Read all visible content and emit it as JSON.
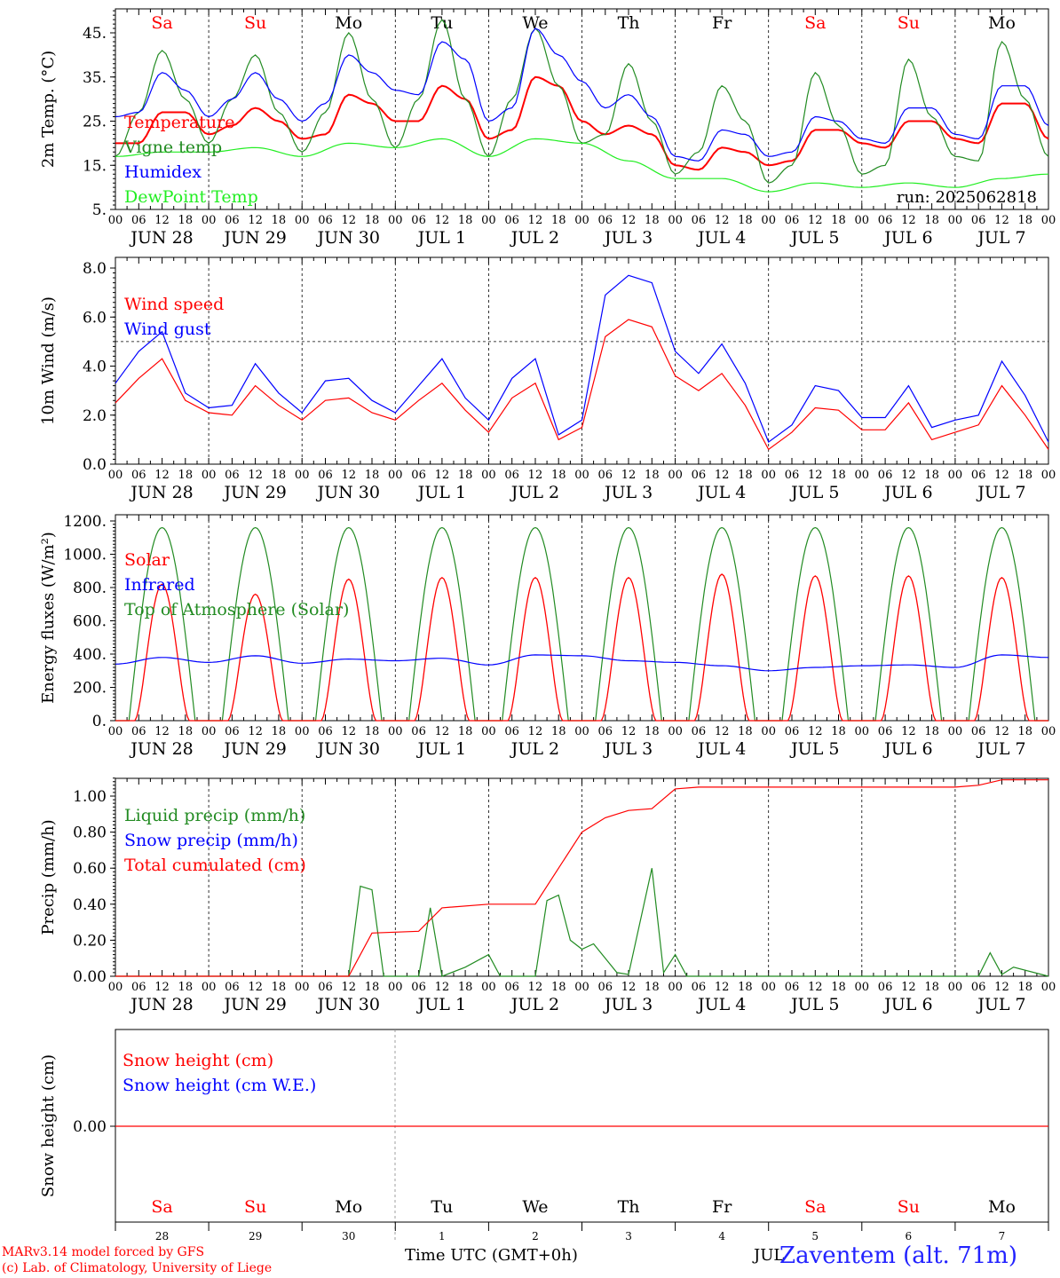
{
  "days": [
    "Sa",
    "Su",
    "Mo",
    "Tu",
    "We",
    "Th",
    "Fr",
    "Sa",
    "Su",
    "Mo"
  ],
  "weekend_flags": [
    true,
    true,
    false,
    false,
    false,
    false,
    false,
    true,
    true,
    false
  ],
  "date_labels": [
    "JUN 28",
    "JUN 29",
    "JUN 30",
    "JUL  1",
    "JUL  2",
    "JUL  3",
    "JUL  4",
    "JUL  5",
    "JUL  6",
    "JUL  7"
  ],
  "hour_ticks": [
    "00",
    "06",
    "12",
    "18"
  ],
  "hour_end": "00",
  "bottom_day_numbers": [
    "28",
    "29",
    "30",
    "1",
    "2",
    "3",
    "4",
    "5",
    "6",
    "7"
  ],
  "run_label": "run: 2025062818",
  "footer": {
    "model_line": "MARv3.14 model forced by GFS",
    "credit_line": "(c) Lab. of Climatology, University of Liege",
    "time_axis": "Time UTC (GMT+0h)",
    "month_fragment": "JUL",
    "station": "Zaventem (alt. 71m)"
  },
  "colors": {
    "red": "#ff0000",
    "green": "#228b22",
    "blue": "#0000ff",
    "light_green": "#22ee22",
    "weekend": "#ff0000",
    "station": "#2222ff"
  },
  "chart_data": [
    {
      "type": "line",
      "ylabel": "2m Temp. (°C)",
      "yticks": [
        "45.",
        "35.",
        "25.",
        "15.",
        "5."
      ],
      "ylim": [
        5,
        50
      ],
      "x_unit": "hours since JUN 28 00 UTC",
      "series": [
        {
          "name": "Temperature",
          "color": "red",
          "x": [
            0,
            6,
            12,
            18,
            24,
            30,
            36,
            42,
            48,
            54,
            60,
            66,
            72,
            78,
            84,
            90,
            96,
            102,
            108,
            114,
            120,
            126,
            132,
            138,
            144,
            150,
            156,
            162,
            168,
            174,
            180,
            186,
            192,
            198,
            204,
            210,
            216,
            222,
            228,
            234,
            240
          ],
          "values": [
            20,
            20,
            27,
            27,
            22,
            24,
            28,
            25,
            21,
            22,
            31,
            29,
            25,
            25,
            33,
            30,
            21,
            23,
            35,
            33,
            25,
            22,
            24,
            22,
            15,
            14,
            19,
            18,
            15,
            16,
            23,
            23,
            20,
            19,
            25,
            25,
            21,
            20,
            29,
            29,
            21
          ]
        },
        {
          "name": "Vigne temp",
          "color": "green",
          "x": [
            0,
            6,
            12,
            18,
            24,
            30,
            36,
            42,
            48,
            54,
            60,
            66,
            72,
            78,
            84,
            90,
            96,
            102,
            108,
            114,
            120,
            126,
            132,
            138,
            144,
            150,
            156,
            162,
            168,
            174,
            180,
            186,
            192,
            198,
            204,
            210,
            216,
            222,
            228,
            234,
            240
          ],
          "values": [
            17,
            27,
            41,
            30,
            20,
            30,
            40,
            27,
            18,
            27,
            45,
            30,
            19,
            30,
            48,
            30,
            17,
            30,
            46,
            33,
            20,
            22,
            38,
            25,
            13,
            18,
            33,
            25,
            11,
            15,
            36,
            24,
            13,
            15,
            39,
            26,
            17,
            16,
            43,
            30,
            17
          ]
        },
        {
          "name": "Humidex",
          "color": "blue",
          "x": [
            0,
            6,
            12,
            18,
            24,
            30,
            36,
            42,
            48,
            54,
            60,
            66,
            72,
            78,
            84,
            90,
            96,
            102,
            108,
            114,
            120,
            126,
            132,
            138,
            144,
            150,
            156,
            162,
            168,
            174,
            180,
            186,
            192,
            198,
            204,
            210,
            216,
            222,
            228,
            234,
            240
          ],
          "values": [
            26,
            27,
            36,
            32,
            26,
            30,
            36,
            30,
            25,
            29,
            40,
            36,
            32,
            31,
            43,
            39,
            25,
            28,
            46,
            40,
            34,
            28,
            31,
            26,
            17,
            16,
            23,
            22,
            17,
            18,
            26,
            25,
            21,
            20,
            28,
            28,
            22,
            21,
            33,
            33,
            24
          ]
        },
        {
          "name": "DewPoint Temp",
          "color": "light_green",
          "x": [
            0,
            12,
            24,
            36,
            48,
            60,
            72,
            84,
            96,
            108,
            120,
            132,
            144,
            156,
            168,
            180,
            192,
            204,
            216,
            228,
            240
          ],
          "values": [
            17,
            18,
            18,
            19,
            17,
            20,
            19,
            21,
            17,
            21,
            20,
            16,
            12,
            12,
            9,
            11,
            10,
            11,
            10,
            12,
            13
          ]
        }
      ]
    },
    {
      "type": "line",
      "ylabel": "10m Wind (m/s)",
      "yticks": [
        "8.0",
        "6.0",
        "4.0",
        "2.0",
        "0.0"
      ],
      "ylim": [
        0,
        8
      ],
      "reference_line": 5,
      "x_unit": "hours since JUN 28 00 UTC",
      "series": [
        {
          "name": "Wind speed",
          "color": "red",
          "x": [
            0,
            6,
            12,
            18,
            24,
            30,
            36,
            42,
            48,
            54,
            60,
            66,
            72,
            78,
            84,
            90,
            96,
            102,
            108,
            114,
            120,
            126,
            132,
            138,
            144,
            150,
            156,
            162,
            168,
            174,
            180,
            186,
            192,
            198,
            204,
            210,
            216,
            222,
            228,
            234,
            240
          ],
          "values": [
            2.5,
            3.5,
            4.3,
            2.6,
            2.1,
            2.0,
            3.2,
            2.4,
            1.8,
            2.6,
            2.7,
            2.1,
            1.8,
            2.6,
            3.3,
            2.2,
            1.3,
            2.7,
            3.3,
            1.0,
            1.5,
            5.2,
            5.9,
            5.6,
            3.6,
            3.0,
            3.7,
            2.4,
            0.6,
            1.3,
            2.3,
            2.2,
            1.4,
            1.4,
            2.5,
            1.0,
            1.3,
            1.6,
            3.2,
            2.0,
            0.6
          ]
        },
        {
          "name": "Wind gust",
          "color": "blue",
          "x": [
            0,
            6,
            12,
            18,
            24,
            30,
            36,
            42,
            48,
            54,
            60,
            66,
            72,
            78,
            84,
            90,
            96,
            102,
            108,
            114,
            120,
            126,
            132,
            138,
            144,
            150,
            156,
            162,
            168,
            174,
            180,
            186,
            192,
            198,
            204,
            210,
            216,
            222,
            228,
            234,
            240
          ],
          "values": [
            3.3,
            4.6,
            5.4,
            2.9,
            2.3,
            2.4,
            4.1,
            2.9,
            2.1,
            3.4,
            3.5,
            2.6,
            2.1,
            3.2,
            4.3,
            2.7,
            1.8,
            3.5,
            4.3,
            1.2,
            1.8,
            6.9,
            7.7,
            7.4,
            4.6,
            3.7,
            4.9,
            3.3,
            0.9,
            1.6,
            3.2,
            3.0,
            1.9,
            1.9,
            3.2,
            1.5,
            1.8,
            2.0,
            4.2,
            2.8,
            0.9
          ]
        }
      ]
    },
    {
      "type": "line",
      "ylabel": "Energy fluxes (W/m²)",
      "yticks": [
        "1200.",
        "1000.",
        "800.",
        "600.",
        "400.",
        "200.",
        "0."
      ],
      "ylim": [
        0,
        1200
      ],
      "x_unit": "hours since JUN 28 00 UTC",
      "solar_peaks": [
        820,
        760,
        850,
        860,
        860,
        860,
        880,
        870,
        870,
        860
      ],
      "toa_peak": 1160,
      "series": [
        {
          "name": "Solar",
          "color": "red"
        },
        {
          "name": "Infrared",
          "color": "blue",
          "x": [
            0,
            12,
            24,
            36,
            48,
            60,
            72,
            84,
            96,
            108,
            120,
            132,
            144,
            156,
            168,
            180,
            192,
            204,
            216,
            228,
            240
          ],
          "values": [
            340,
            380,
            350,
            390,
            345,
            370,
            360,
            375,
            335,
            395,
            390,
            360,
            350,
            330,
            300,
            320,
            330,
            335,
            320,
            395,
            380
          ]
        },
        {
          "name": "Top of Atmosphere (Solar)",
          "color": "green"
        }
      ]
    },
    {
      "type": "line",
      "ylabel": "Precip (mm/h)",
      "yticks": [
        "1.00",
        "0.80",
        "0.60",
        "0.40",
        "0.20",
        "0.00"
      ],
      "ylim": [
        0,
        1.1
      ],
      "x_unit": "hours since JUN 28 00 UTC",
      "series": [
        {
          "name": "Liquid precip (mm/h)",
          "color": "green",
          "x": [
            0,
            60,
            63,
            66,
            69,
            72,
            78,
            81,
            84,
            90,
            96,
            99,
            108,
            111,
            114,
            117,
            120,
            123,
            126,
            129,
            132,
            138,
            141,
            144,
            147,
            150,
            216,
            222,
            225,
            228,
            231,
            240
          ],
          "values": [
            0,
            0,
            0.5,
            0.48,
            0,
            0,
            0,
            0.38,
            0,
            0.05,
            0.12,
            0,
            0,
            0.42,
            0.45,
            0.2,
            0.15,
            0.18,
            0.1,
            0.02,
            0.01,
            0.6,
            0.02,
            0.12,
            0,
            0,
            0,
            0,
            0.13,
            0.01,
            0.05,
            0
          ]
        },
        {
          "name": "Snow precip (mm/h)",
          "color": "blue"
        },
        {
          "name": "Total cumulated (cm)",
          "color": "red",
          "x": [
            0,
            60,
            66,
            78,
            84,
            96,
            108,
            114,
            120,
            126,
            132,
            138,
            144,
            150,
            216,
            222,
            228,
            240
          ],
          "values": [
            0,
            0,
            0.24,
            0.25,
            0.38,
            0.4,
            0.4,
            0.6,
            0.8,
            0.88,
            0.92,
            0.93,
            1.04,
            1.05,
            1.05,
            1.06,
            1.09,
            1.09
          ]
        }
      ]
    },
    {
      "type": "line",
      "ylabel": "Snow height (cm)",
      "yticks": [
        "0.00"
      ],
      "x_unit": "hours since JUN 28 00 UTC",
      "series": [
        {
          "name": "Snow height (cm)",
          "color": "red",
          "x": [
            0,
            240
          ],
          "values": [
            0,
            0
          ]
        },
        {
          "name": "Snow height (cm W.E.)",
          "color": "blue"
        }
      ]
    }
  ]
}
